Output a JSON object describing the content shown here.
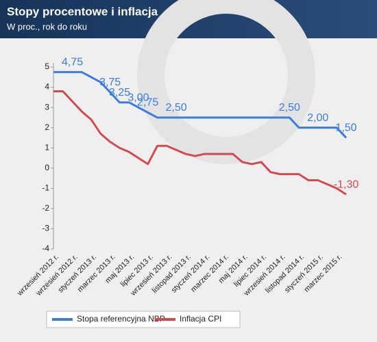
{
  "chart_data": {
    "type": "line",
    "title": "Stopy procentowe i inflacja",
    "subtitle": "W proc., rok do roku",
    "categories": [
      "wrzesień 2012 r.",
      null,
      "wrzesień 2012 r.",
      null,
      "styczeń 2013 r.",
      null,
      "marzec 2013 r.",
      null,
      "maj 2013 r.",
      null,
      "lipiec 2013 r.",
      null,
      "wrzesień 2013 r.",
      null,
      "listopad 2013 r.",
      null,
      "styczeń 2014 r.",
      null,
      "marzec 2014 r.",
      null,
      "maj 2014 r.",
      null,
      "lipiec 2014 r.",
      null,
      "wrzesień 2014 r.",
      null,
      "listopad 2014 r.",
      null,
      "styczeń 2015 r.",
      null,
      "marzec 2015 r.",
      null
    ],
    "series": [
      {
        "name": "Stopa referencyjna NBP",
        "color": "#3b7ddd",
        "values": [
          4.75,
          4.75,
          4.75,
          4.75,
          4.5,
          4.25,
          3.75,
          3.25,
          3.25,
          3.0,
          2.75,
          2.5,
          2.5,
          2.5,
          2.5,
          2.5,
          2.5,
          2.5,
          2.5,
          2.5,
          2.5,
          2.5,
          2.5,
          2.5,
          2.5,
          2.5,
          2.0,
          2.0,
          2.0,
          2.0,
          2.0,
          1.5
        ],
        "value_labels": [
          null,
          null,
          "4,75",
          null,
          null,
          null,
          "3,75",
          "3,25",
          null,
          "3,00",
          "2,75",
          null,
          null,
          "2,50",
          null,
          null,
          null,
          null,
          null,
          null,
          null,
          null,
          null,
          null,
          null,
          "2,50",
          null,
          null,
          "2,00",
          null,
          null,
          "1,50"
        ]
      },
      {
        "name": "Inflacja CPI",
        "color": "#d04a4f",
        "values": [
          3.8,
          3.8,
          3.3,
          2.8,
          2.4,
          1.7,
          1.3,
          1.0,
          0.8,
          0.5,
          0.2,
          1.1,
          1.1,
          0.9,
          0.7,
          0.6,
          0.7,
          0.7,
          0.7,
          0.7,
          0.3,
          0.2,
          0.3,
          -0.2,
          -0.3,
          -0.3,
          -0.3,
          -0.6,
          -0.6,
          -0.8,
          -1.0,
          -1.3
        ],
        "value_labels": [
          null,
          null,
          null,
          null,
          null,
          null,
          null,
          null,
          null,
          null,
          null,
          null,
          null,
          null,
          null,
          null,
          null,
          null,
          null,
          null,
          null,
          null,
          null,
          null,
          null,
          null,
          null,
          null,
          null,
          null,
          null,
          "-1,30"
        ]
      }
    ],
    "ylim": [
      -4,
      5
    ],
    "yticks": [
      5,
      4,
      3,
      2,
      1,
      0,
      -1,
      -2,
      -3,
      -4
    ],
    "legend": "bottom"
  }
}
